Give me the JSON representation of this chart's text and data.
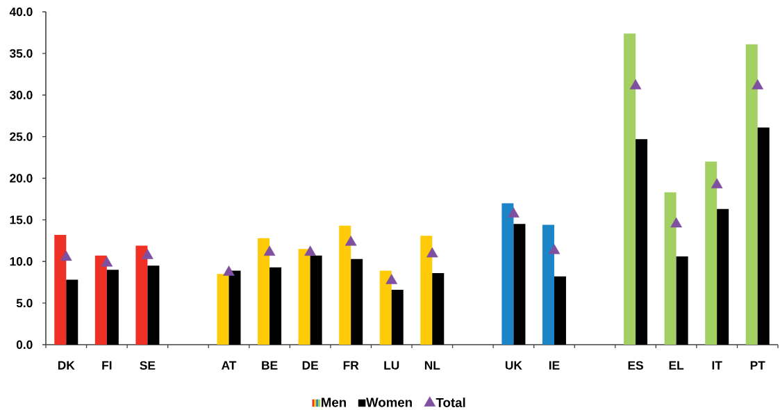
{
  "chart_data": {
    "type": "bar",
    "categories": [
      "DK",
      "FI",
      "SE",
      null,
      "AT",
      "BE",
      "DE",
      "FR",
      "LU",
      "NL",
      null,
      "UK",
      "IE",
      null,
      "ES",
      "EL",
      "IT",
      "PT"
    ],
    "series": [
      {
        "name": "Men",
        "colors": [
          "#ee3124",
          "#ee3124",
          "#ee3124",
          null,
          "#ffcb08",
          "#ffcb08",
          "#ffcb08",
          "#ffcb08",
          "#ffcb08",
          "#ffcb08",
          null,
          "#1c85c8",
          "#1c85c8",
          null,
          "#a3d063",
          "#a3d063",
          "#a3d063",
          "#a3d063"
        ],
        "values": [
          13.2,
          10.7,
          11.9,
          null,
          8.5,
          12.8,
          11.5,
          14.3,
          8.9,
          13.1,
          null,
          17.0,
          14.4,
          null,
          37.4,
          18.3,
          22.0,
          36.1
        ]
      },
      {
        "name": "Women",
        "color": "#000000",
        "values": [
          7.8,
          9.0,
          9.5,
          null,
          8.9,
          9.3,
          10.7,
          10.3,
          6.6,
          8.6,
          null,
          14.5,
          8.2,
          null,
          24.7,
          10.6,
          16.3,
          26.1
        ]
      },
      {
        "name": "Total",
        "type": "scatter",
        "marker": "triangle",
        "color": "#7f4fa0",
        "values": [
          10.5,
          9.8,
          10.7,
          null,
          8.7,
          11.1,
          11.1,
          12.3,
          7.7,
          10.9,
          null,
          15.7,
          11.3,
          null,
          31.1,
          14.5,
          19.2,
          31.1
        ]
      }
    ],
    "ylim": [
      0,
      40
    ],
    "yticks": [
      {
        "value": 0,
        "label": "0.0"
      },
      {
        "value": 5,
        "label": "5.0"
      },
      {
        "value": 10,
        "label": "10.0"
      },
      {
        "value": 15,
        "label": "15.0"
      },
      {
        "value": 20,
        "label": "20.0"
      },
      {
        "value": 25,
        "label": "25.0"
      },
      {
        "value": 30,
        "label": "30.0"
      },
      {
        "value": 35,
        "label": "35.0"
      },
      {
        "value": 40,
        "label": "40.0"
      }
    ],
    "legend": "bottom"
  }
}
